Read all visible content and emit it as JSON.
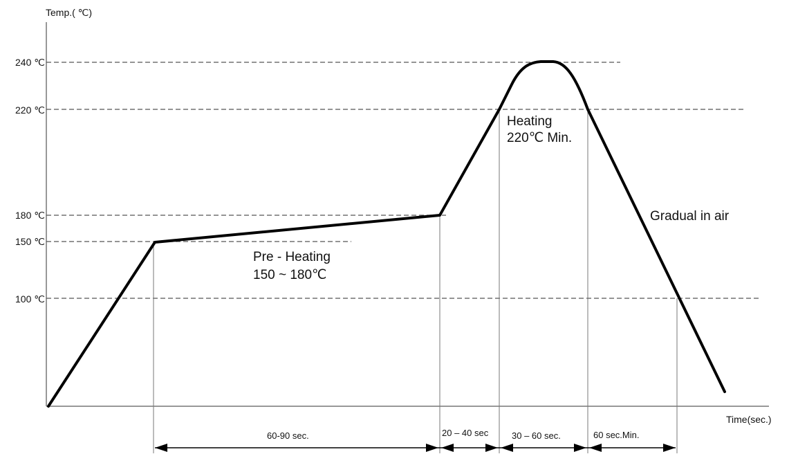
{
  "axes": {
    "y_title": "Temp.( ℃)",
    "x_title": "Time(sec.)"
  },
  "ticks": {
    "t240": "240 ℃",
    "t220": "220 ℃",
    "t180": "180 ℃",
    "t150": "150 ℃",
    "t100": "100 ℃"
  },
  "annotations": {
    "preheat_line1": "Pre - Heating",
    "preheat_line2": "150 ~ 180℃",
    "heating_line1": "Heating",
    "heating_line2": "220℃ Min.",
    "cooling": "Gradual in air"
  },
  "durations": {
    "preheat": "60-90 sec.",
    "ramp": "20 – 40 sec",
    "peak": "30 – 60 sec.",
    "cool": "60 sec.Min."
  },
  "colors": {
    "profile": "#000000",
    "guide": "#555555",
    "axis": "#777777"
  }
}
